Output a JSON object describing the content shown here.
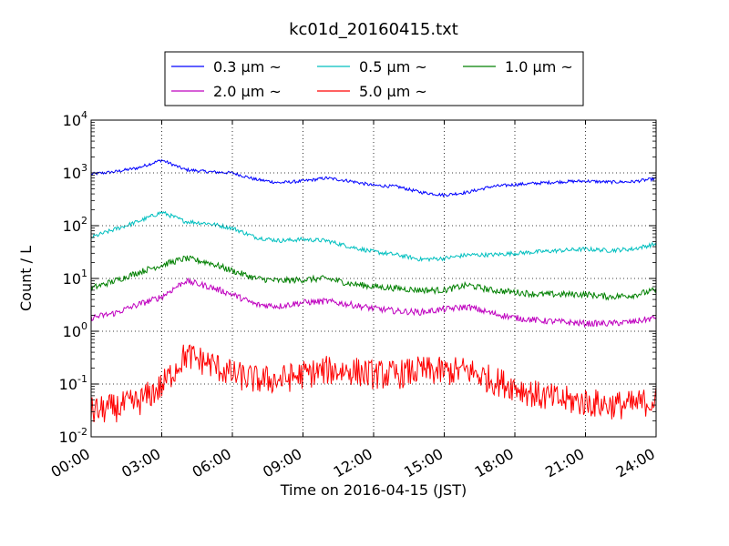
{
  "chart_data": {
    "type": "line",
    "title": "kc01d_20160415.txt",
    "xlabel": "Time on 2016-04-15 (JST)",
    "ylabel": "Count / L",
    "y_scale": "log",
    "xlim": [
      "00:00",
      "24:00"
    ],
    "ylim": [
      0.01,
      10000
    ],
    "grid": true,
    "legend_position": "top-center",
    "x_ticks": [
      "00:00",
      "03:00",
      "06:00",
      "09:00",
      "12:00",
      "15:00",
      "18:00",
      "21:00",
      "24:00"
    ],
    "y_ticks": [
      {
        "base": "10",
        "exp": "-2"
      },
      {
        "base": "10",
        "exp": "-1"
      },
      {
        "base": "10",
        "exp": "0"
      },
      {
        "base": "10",
        "exp": "1"
      },
      {
        "base": "10",
        "exp": "2"
      },
      {
        "base": "10",
        "exp": "3"
      },
      {
        "base": "10",
        "exp": "4"
      }
    ],
    "x": [
      "00:00",
      "01:00",
      "02:00",
      "03:00",
      "04:00",
      "05:00",
      "06:00",
      "07:00",
      "08:00",
      "09:00",
      "10:00",
      "11:00",
      "12:00",
      "13:00",
      "14:00",
      "15:00",
      "16:00",
      "17:00",
      "18:00",
      "19:00",
      "20:00",
      "21:00",
      "22:00",
      "23:00",
      "24:00"
    ],
    "series": [
      {
        "name": "0.3 µm ~",
        "color": "#0000ff",
        "noise": 0.03,
        "values": [
          950,
          1050,
          1250,
          1750,
          1150,
          1050,
          1000,
          750,
          650,
          700,
          800,
          700,
          580,
          550,
          430,
          380,
          430,
          550,
          600,
          640,
          680,
          700,
          670,
          680,
          780
        ]
      },
      {
        "name": "0.5 µm ~",
        "color": "#00bfbf",
        "noise": 0.04,
        "values": [
          60,
          85,
          120,
          180,
          120,
          110,
          90,
          60,
          52,
          55,
          52,
          40,
          32,
          28,
          23,
          24,
          28,
          28,
          30,
          32,
          34,
          36,
          34,
          36,
          45
        ]
      },
      {
        "name": "1.0 µm ~",
        "color": "#008000",
        "noise": 0.06,
        "values": [
          6.5,
          9,
          13,
          18,
          24,
          20,
          14,
          10,
          9,
          9.5,
          10,
          8,
          7,
          6.5,
          6,
          6,
          7.5,
          6,
          5.5,
          5,
          5,
          5,
          4.5,
          4.8,
          6
        ]
      },
      {
        "name": "2.0 µm ~",
        "color": "#bf00bf",
        "noise": 0.06,
        "values": [
          1.8,
          2.2,
          3.2,
          4.5,
          9,
          7,
          5,
          3.2,
          3,
          3.5,
          3.7,
          3.2,
          2.7,
          2.4,
          2.3,
          2.6,
          2.9,
          2.2,
          1.8,
          1.6,
          1.5,
          1.4,
          1.4,
          1.5,
          1.8
        ]
      },
      {
        "name": "5.0 µm ~",
        "color": "#ff0000",
        "noise": 0.28,
        "values": [
          0.03,
          0.035,
          0.045,
          0.09,
          0.35,
          0.25,
          0.15,
          0.12,
          0.12,
          0.15,
          0.18,
          0.18,
          0.15,
          0.15,
          0.18,
          0.17,
          0.18,
          0.12,
          0.09,
          0.06,
          0.05,
          0.045,
          0.04,
          0.04,
          0.05
        ]
      }
    ]
  }
}
